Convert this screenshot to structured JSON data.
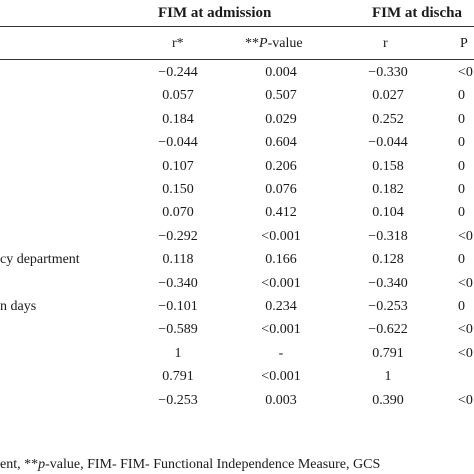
{
  "header": {
    "group1": "FIM at admission",
    "group2": "FIM at discha",
    "sub_r1": "r*",
    "sub_p1_prefix": "**",
    "sub_p1_italic": "P",
    "sub_p1_suffix": "-value",
    "sub_r2": "r",
    "sub_p2_italic": "P"
  },
  "rows": [
    {
      "label": "",
      "r1": "−0.244",
      "p1": "0.004",
      "r2": "−0.330",
      "p2": "<0"
    },
    {
      "label": "",
      "r1": "0.057",
      "p1": "0.507",
      "r2": "0.027",
      "p2": "0"
    },
    {
      "label": "",
      "r1": "0.184",
      "p1": "0.029",
      "r2": "0.252",
      "p2": "0"
    },
    {
      "label": "",
      "r1": "−0.044",
      "p1": "0.604",
      "r2": "−0.044",
      "p2": "0"
    },
    {
      "label": "",
      "r1": "0.107",
      "p1": "0.206",
      "r2": "0.158",
      "p2": "0"
    },
    {
      "label": "",
      "r1": "0.150",
      "p1": "0.076",
      "r2": "0.182",
      "p2": "0"
    },
    {
      "label": "",
      "r1": "0.070",
      "p1": "0.412",
      "r2": "0.104",
      "p2": "0"
    },
    {
      "label": "",
      "r1": "−0.292",
      "p1": "<0.001",
      "r2": "−0.318",
      "p2": "<0"
    },
    {
      "label": "cy department",
      "r1": "0.118",
      "p1": "0.166",
      "r2": "0.128",
      "p2": "0"
    },
    {
      "label": "",
      "r1": "−0.340",
      "p1": "<0.001",
      "r2": "−0.340",
      "p2": "<0"
    },
    {
      "label": "n days",
      "r1": "−0.101",
      "p1": "0.234",
      "r2": "−0.253",
      "p2": "0"
    },
    {
      "label": "",
      "r1": "−0.589",
      "p1": "<0.001",
      "r2": "−0.622",
      "p2": "<0"
    },
    {
      "label": "",
      "r1": "1",
      "p1": "-",
      "r2": "0.791",
      "p2": "<0"
    },
    {
      "label": "",
      "r1": "0.791",
      "p1": "<0.001",
      "r2": "1",
      "p2": ""
    },
    {
      "label": "",
      "r1": "−0.253",
      "p1": "0.003",
      "r2": "0.390",
      "p2": "<0"
    }
  ],
  "footnote": {
    "prefix": "ent, **",
    "italic": "p",
    "suffix": "-value, FIM- FIM- Functional Independence Measure, GCS"
  }
}
